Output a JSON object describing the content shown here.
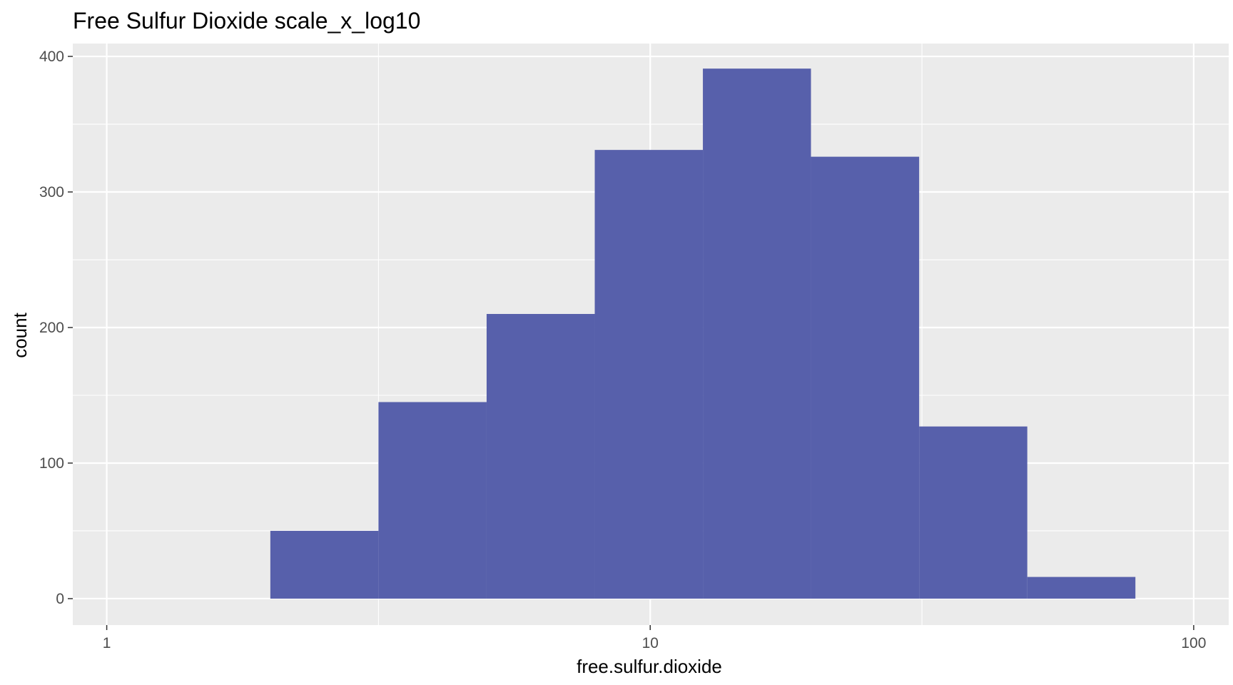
{
  "chart_data": {
    "type": "bar",
    "title": "Free Sulfur Dioxide scale_x_log10",
    "xlabel": "free.sulfur.dioxide",
    "ylabel": "count",
    "x_scale": "log10",
    "xlim": [
      0.866,
      116.0
    ],
    "ylim": [
      -19.5,
      409.5
    ],
    "x_ticks": [
      {
        "value": 1,
        "label": "1"
      },
      {
        "value": 10,
        "label": "10"
      },
      {
        "value": 100,
        "label": "100"
      }
    ],
    "x_minor_gridlines": [
      3.162,
      31.62
    ],
    "y_ticks": [
      {
        "value": 0,
        "label": "0"
      },
      {
        "value": 100,
        "label": "100"
      },
      {
        "value": 200,
        "label": "200"
      },
      {
        "value": 300,
        "label": "300"
      },
      {
        "value": 400,
        "label": "400"
      }
    ],
    "y_minor_gridlines": [
      50,
      150,
      250,
      350
    ],
    "grid": true,
    "legend": "none",
    "bins": [
      {
        "x_min": 2.0,
        "x_max": 3.162,
        "count": 50
      },
      {
        "x_min": 3.162,
        "x_max": 5.0,
        "count": 145
      },
      {
        "x_min": 5.0,
        "x_max": 7.906,
        "count": 210
      },
      {
        "x_min": 7.906,
        "x_max": 12.5,
        "count": 331
      },
      {
        "x_min": 12.5,
        "x_max": 19.76,
        "count": 391
      },
      {
        "x_min": 19.76,
        "x_max": 31.25,
        "count": 326
      },
      {
        "x_min": 31.25,
        "x_max": 49.41,
        "count": 127
      },
      {
        "x_min": 49.41,
        "x_max": 78.12,
        "count": 16
      }
    ],
    "colors": {
      "bar_fill": "#5760AB",
      "panel_background": "#EBEBEB",
      "grid_major": "#FFFFFF",
      "grid_minor": "#F5F5F5",
      "tick_text": "#4D4D4D",
      "title_text": "#000000"
    }
  }
}
